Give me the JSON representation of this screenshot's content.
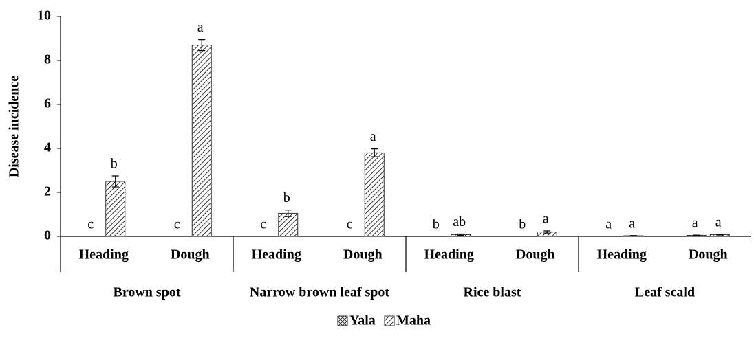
{
  "chart_data": {
    "type": "bar",
    "y_label": "Disease incidence",
    "categories": [
      "Heading",
      "Dough",
      "Heading",
      "Dough",
      "Heading",
      "Dough",
      "Heading",
      "Dough"
    ],
    "groups": [
      "Brown spot",
      "Narrow brown leaf spot",
      "Rice blast",
      "Leaf scald"
    ],
    "series": [
      {
        "name": "Yala",
        "color": "#333333",
        "values": [
          0,
          0,
          0,
          0,
          0,
          0,
          0,
          0.05
        ],
        "errors": [
          0,
          0,
          0,
          0,
          0,
          0,
          0,
          0.01
        ],
        "letters": [
          "c",
          "c",
          "c",
          "c",
          "b",
          "b",
          "a",
          "a"
        ]
      },
      {
        "name": "Maha",
        "color": "#333333",
        "values": [
          2.5,
          8.7,
          1.05,
          3.8,
          0.08,
          0.2,
          0.03,
          0.08
        ],
        "errors": [
          0.25,
          0.25,
          0.15,
          0.18,
          0.03,
          0.05,
          0.01,
          0.02
        ],
        "letters": [
          "b",
          "a",
          "b",
          "a",
          "ab",
          "a",
          "a",
          "a"
        ]
      }
    ],
    "ylim": [
      0,
      10
    ],
    "yticks": [
      0,
      2,
      4,
      6,
      8,
      10
    ]
  }
}
